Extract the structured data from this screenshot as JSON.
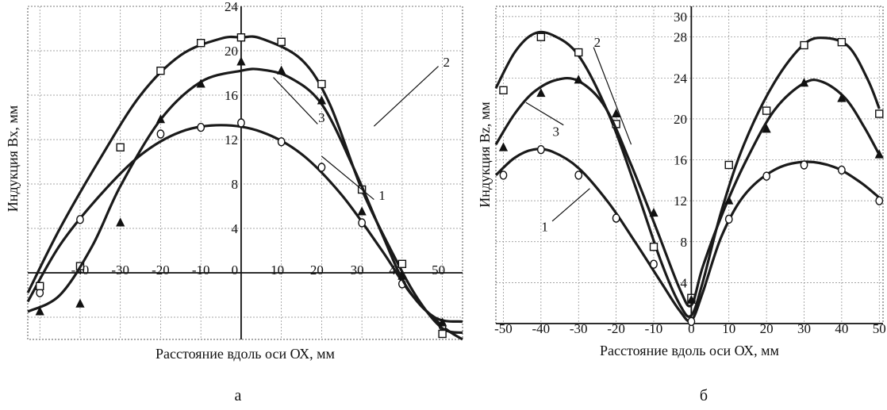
{
  "chart_data": [
    {
      "id": "a",
      "type": "line",
      "caption": "а",
      "xlabel": "Расстояние вдоль оси ОХ, мм",
      "ylabel": "Индукция Bx, мм",
      "xlim": [
        -53,
        55
      ],
      "ylim": [
        -6,
        24
      ],
      "xticks": [
        -40,
        -30,
        -20,
        -10,
        0,
        10,
        20,
        30,
        40,
        50
      ],
      "xtick_labels": [
        "-40",
        "-30",
        "-20",
        "-10",
        "0",
        "10",
        "20",
        "30",
        "40",
        "50"
      ],
      "yticks": [
        4,
        8,
        12,
        16,
        20,
        24
      ],
      "ytick_labels": [
        "4",
        "8",
        "12",
        "16",
        "20",
        "24"
      ],
      "grid": true,
      "series": [
        {
          "name": "1",
          "marker": "circle",
          "points": [
            [
              -50,
              -1.8
            ],
            [
              -40,
              4.8
            ],
            [
              -20,
              12.5
            ],
            [
              -10,
              13.1
            ],
            [
              0,
              13.5
            ],
            [
              10,
              11.8
            ],
            [
              20,
              9.5
            ],
            [
              30,
              4.5
            ],
            [
              40,
              -1.0
            ],
            [
              50,
              -4.8
            ]
          ],
          "curve": [
            [
              -53,
              -2.6
            ],
            [
              -45,
              2.5
            ],
            [
              -35,
              7.0
            ],
            [
              -25,
              10.6
            ],
            [
              -15,
              12.7
            ],
            [
              -5,
              13.3
            ],
            [
              5,
              12.7
            ],
            [
              15,
              10.7
            ],
            [
              25,
              7.0
            ],
            [
              35,
              2.0
            ],
            [
              42,
              -1.8
            ],
            [
              50,
              -4.8
            ],
            [
              55,
              -6.0
            ]
          ]
        },
        {
          "name": "2",
          "marker": "square",
          "points": [
            [
              -50,
              -1.2
            ],
            [
              -40,
              0.6
            ],
            [
              -30,
              11.3
            ],
            [
              -20,
              18.2
            ],
            [
              -10,
              20.7
            ],
            [
              0,
              21.2
            ],
            [
              10,
              20.8
            ],
            [
              20,
              17.0
            ],
            [
              30,
              7.5
            ],
            [
              40,
              0.8
            ],
            [
              50,
              -5.5
            ]
          ],
          "curve": [
            [
              -53,
              -1.8
            ],
            [
              -45,
              4.0
            ],
            [
              -35,
              10.3
            ],
            [
              -25,
              16.0
            ],
            [
              -15,
              19.6
            ],
            [
              -5,
              21.1
            ],
            [
              0,
              21.2
            ],
            [
              5,
              21.1
            ],
            [
              15,
              19.2
            ],
            [
              22,
              15.2
            ],
            [
              30,
              7.5
            ],
            [
              38,
              1.5
            ],
            [
              44,
              -2.4
            ],
            [
              50,
              -5.0
            ],
            [
              55,
              -5.4
            ]
          ]
        },
        {
          "name": "3",
          "marker": "triangle",
          "points": [
            [
              -50,
              -3.5
            ],
            [
              -40,
              -2.8
            ],
            [
              -30,
              4.5
            ],
            [
              -20,
              13.8
            ],
            [
              -10,
              17.0
            ],
            [
              0,
              19.0
            ],
            [
              10,
              18.2
            ],
            [
              20,
              15.5
            ],
            [
              30,
              5.5
            ],
            [
              40,
              -0.3
            ],
            [
              50,
              -4.5
            ]
          ],
          "curve": [
            [
              -53,
              -3.5
            ],
            [
              -45,
              -2.0
            ],
            [
              -37,
              2.4
            ],
            [
              -30,
              7.8
            ],
            [
              -20,
              13.8
            ],
            [
              -10,
              17.2
            ],
            [
              0,
              18.2
            ],
            [
              5,
              18.3
            ],
            [
              12,
              17.6
            ],
            [
              20,
              15.2
            ],
            [
              28,
              9.4
            ],
            [
              35,
              3.5
            ],
            [
              41,
              -1.2
            ],
            [
              48,
              -4.0
            ],
            [
              55,
              -4.4
            ]
          ]
        }
      ],
      "annotations": [
        {
          "text": "1",
          "x": 35,
          "y": 7.0
        },
        {
          "text": "2",
          "x": 51,
          "y": 19.0
        },
        {
          "text": "3",
          "x": 20,
          "y": 14.0
        }
      ]
    },
    {
      "id": "b",
      "type": "line",
      "caption": "б",
      "xlabel": "Расстояние вдоль оси ОХ, мм",
      "ylabel": "Индукция Bz, мм",
      "xlim": [
        -52,
        51
      ],
      "ylim": [
        0,
        31
      ],
      "xticks": [
        -50,
        -40,
        -30,
        -20,
        -10,
        0,
        10,
        20,
        30,
        40,
        50
      ],
      "xtick_labels": [
        "-50",
        "-40",
        "-30",
        "-20",
        "-10",
        "0",
        "10",
        "20",
        "30",
        "40",
        "50"
      ],
      "yticks": [
        4,
        8,
        12,
        16,
        20,
        24,
        28,
        30
      ],
      "ytick_labels": [
        "4",
        "8",
        "12",
        "16",
        "20",
        "24",
        "28",
        "30"
      ],
      "grid": true,
      "series": [
        {
          "name": "1",
          "marker": "circle",
          "points": [
            [
              -50,
              14.5
            ],
            [
              -40,
              17.0
            ],
            [
              -30,
              14.5
            ],
            [
              -20,
              10.3
            ],
            [
              -10,
              5.8
            ],
            [
              0,
              0.2
            ],
            [
              10,
              10.2
            ],
            [
              20,
              14.4
            ],
            [
              30,
              15.5
            ],
            [
              40,
              15.0
            ],
            [
              50,
              12.0
            ]
          ],
          "curve": [
            [
              -52,
              14.5
            ],
            [
              -47,
              16.2
            ],
            [
              -42,
              17.0
            ],
            [
              -37,
              16.8
            ],
            [
              -30,
              15.2
            ],
            [
              -22,
              11.8
            ],
            [
              -15,
              8.0
            ],
            [
              -8,
              4.0
            ],
            [
              -3,
              1.2
            ],
            [
              0,
              0.3
            ],
            [
              3,
              3.0
            ],
            [
              8,
              8.5
            ],
            [
              14,
              12.5
            ],
            [
              22,
              15.0
            ],
            [
              30,
              15.8
            ],
            [
              38,
              15.3
            ],
            [
              45,
              13.8
            ],
            [
              50,
              12.3
            ]
          ]
        },
        {
          "name": "2",
          "marker": "square",
          "points": [
            [
              -50,
              22.8
            ],
            [
              -40,
              28.0
            ],
            [
              -30,
              26.5
            ],
            [
              -20,
              19.5
            ],
            [
              -10,
              7.5
            ],
            [
              0,
              2.5
            ],
            [
              10,
              15.5
            ],
            [
              20,
              20.8
            ],
            [
              30,
              27.2
            ],
            [
              40,
              27.5
            ],
            [
              50,
              20.5
            ]
          ],
          "curve": [
            [
              -52,
              23.0
            ],
            [
              -47,
              26.5
            ],
            [
              -42,
              28.3
            ],
            [
              -37,
              28.2
            ],
            [
              -30,
              26.2
            ],
            [
              -22,
              20.5
            ],
            [
              -15,
              13.5
            ],
            [
              -8,
              6.0
            ],
            [
              -3,
              1.8
            ],
            [
              0,
              0.8
            ],
            [
              3,
              4.0
            ],
            [
              8,
              11.0
            ],
            [
              14,
              17.5
            ],
            [
              22,
              23.5
            ],
            [
              30,
              27.3
            ],
            [
              36,
              27.9
            ],
            [
              42,
              27.0
            ],
            [
              47,
              23.8
            ],
            [
              50,
              21.0
            ]
          ]
        },
        {
          "name": "3",
          "marker": "triangle",
          "points": [
            [
              -50,
              17.2
            ],
            [
              -40,
              22.5
            ],
            [
              -30,
              23.8
            ],
            [
              -20,
              20.5
            ],
            [
              -10,
              10.8
            ],
            [
              0,
              2.3
            ],
            [
              10,
              12.0
            ],
            [
              20,
              19.0
            ],
            [
              30,
              23.5
            ],
            [
              40,
              22.0
            ],
            [
              50,
              16.5
            ]
          ],
          "curve": [
            [
              -52,
              17.5
            ],
            [
              -47,
              20.5
            ],
            [
              -42,
              22.6
            ],
            [
              -36,
              23.8
            ],
            [
              -30,
              23.7
            ],
            [
              -23,
              21.2
            ],
            [
              -16,
              15.5
            ],
            [
              -9,
              9.0
            ],
            [
              -3,
              3.3
            ],
            [
              0,
              1.8
            ],
            [
              3,
              5.5
            ],
            [
              8,
              10.5
            ],
            [
              14,
              15.5
            ],
            [
              22,
              20.8
            ],
            [
              30,
              23.5
            ],
            [
              35,
              23.6
            ],
            [
              41,
              22.0
            ],
            [
              46,
              19.2
            ],
            [
              50,
              16.5
            ]
          ]
        }
      ],
      "annotations": [
        {
          "text": "1",
          "x": -39,
          "y": 9.5
        },
        {
          "text": "2",
          "x": -25,
          "y": 27.5
        },
        {
          "text": "3",
          "x": -36,
          "y": 18.8
        }
      ]
    }
  ]
}
